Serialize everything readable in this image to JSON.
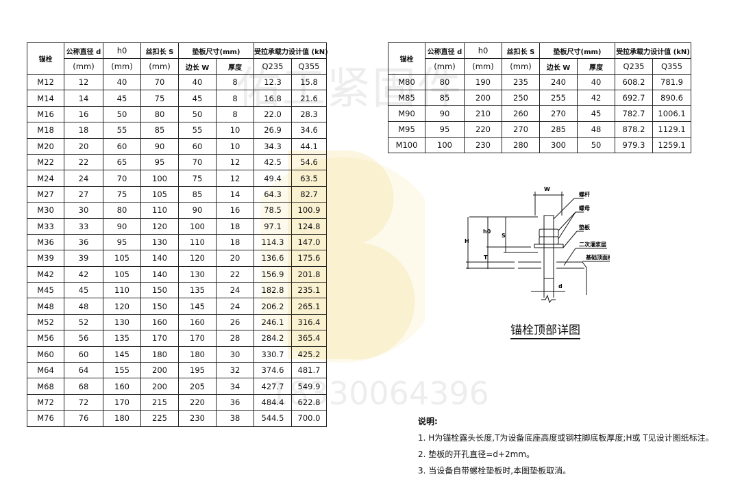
{
  "watermark": {
    "brand": "佑工紧固件",
    "phone": "18330064396"
  },
  "table_header": {
    "bolt": "锚栓",
    "diameter": "公称直径 d",
    "h0": "h0",
    "thread": "丝扣长 S",
    "unit": "(mm)",
    "plate": "垫板尺寸(mm)",
    "plate_w": "边长 W",
    "plate_t": "厚度",
    "load": "受拉承载力设计值 (kN)",
    "q235": "Q235",
    "q355": "Q355"
  },
  "left_rows": [
    [
      "M12",
      "12",
      "40",
      "70",
      "40",
      "8",
      "12.3",
      "15.8"
    ],
    [
      "M14",
      "14",
      "45",
      "75",
      "45",
      "8",
      "16.8",
      "21.6"
    ],
    [
      "M16",
      "16",
      "50",
      "80",
      "50",
      "8",
      "22.0",
      "28.3"
    ],
    [
      "M18",
      "18",
      "55",
      "85",
      "55",
      "10",
      "26.9",
      "34.6"
    ],
    [
      "M20",
      "20",
      "60",
      "90",
      "60",
      "10",
      "34.3",
      "44.1"
    ],
    [
      "M22",
      "22",
      "65",
      "95",
      "70",
      "12",
      "42.5",
      "54.6"
    ],
    [
      "M24",
      "24",
      "70",
      "100",
      "75",
      "12",
      "49.4",
      "63.5"
    ],
    [
      "M27",
      "27",
      "75",
      "105",
      "85",
      "14",
      "64.3",
      "82.7"
    ],
    [
      "M30",
      "30",
      "80",
      "110",
      "90",
      "16",
      "78.5",
      "100.9"
    ],
    [
      "M33",
      "33",
      "90",
      "120",
      "100",
      "18",
      "97.1",
      "124.8"
    ],
    [
      "M36",
      "36",
      "95",
      "130",
      "110",
      "18",
      "114.3",
      "147.0"
    ],
    [
      "M39",
      "39",
      "105",
      "140",
      "120",
      "20",
      "136.6",
      "175.6"
    ],
    [
      "M42",
      "42",
      "105",
      "140",
      "130",
      "22",
      "156.9",
      "201.8"
    ],
    [
      "M45",
      "45",
      "110",
      "150",
      "135",
      "24",
      "182.8",
      "235.1"
    ],
    [
      "M48",
      "48",
      "120",
      "150",
      "145",
      "24",
      "206.2",
      "265.1"
    ],
    [
      "M52",
      "52",
      "130",
      "160",
      "160",
      "26",
      "246.1",
      "316.4"
    ],
    [
      "M56",
      "56",
      "135",
      "170",
      "170",
      "28",
      "284.2",
      "365.4"
    ],
    [
      "M60",
      "60",
      "145",
      "180",
      "180",
      "30",
      "330.7",
      "425.2"
    ],
    [
      "M64",
      "64",
      "155",
      "200",
      "195",
      "32",
      "374.6",
      "481.7"
    ],
    [
      "M68",
      "68",
      "160",
      "200",
      "205",
      "34",
      "427.7",
      "549.9"
    ],
    [
      "M72",
      "72",
      "170",
      "215",
      "220",
      "36",
      "484.4",
      "622.8"
    ],
    [
      "M76",
      "76",
      "180",
      "225",
      "230",
      "38",
      "544.5",
      "700.0"
    ]
  ],
  "right_rows": [
    [
      "M80",
      "80",
      "190",
      "235",
      "240",
      "40",
      "608.2",
      "781.9"
    ],
    [
      "M85",
      "85",
      "200",
      "250",
      "255",
      "42",
      "692.7",
      "890.6"
    ],
    [
      "M90",
      "90",
      "210",
      "260",
      "270",
      "45",
      "782.7",
      "1006.1"
    ],
    [
      "M95",
      "95",
      "220",
      "270",
      "285",
      "48",
      "878.2",
      "1129.1"
    ],
    [
      "M100",
      "100",
      "230",
      "280",
      "300",
      "50",
      "979.3",
      "1259.1"
    ]
  ],
  "diagram": {
    "title": "锚栓顶部详图",
    "labels": {
      "W": "W",
      "H": "H",
      "h0": "h0",
      "S": "S",
      "T": "T",
      "d": "d",
      "rod": "螺杆",
      "nut": "螺母",
      "plate": "垫板",
      "grout": "二次灌浆层",
      "foundation": "基础顶面标高"
    }
  },
  "notes": {
    "title": "说明:",
    "items": [
      "1. H为锚栓露头长度,T为设备底座高度或钢柱脚底板厚度;H或 T见设计图纸标注。",
      "2. 垫板的开孔直径=d+2mm。",
      "3. 当设备自带螺栓垫板时,本图垫板取消。"
    ]
  }
}
